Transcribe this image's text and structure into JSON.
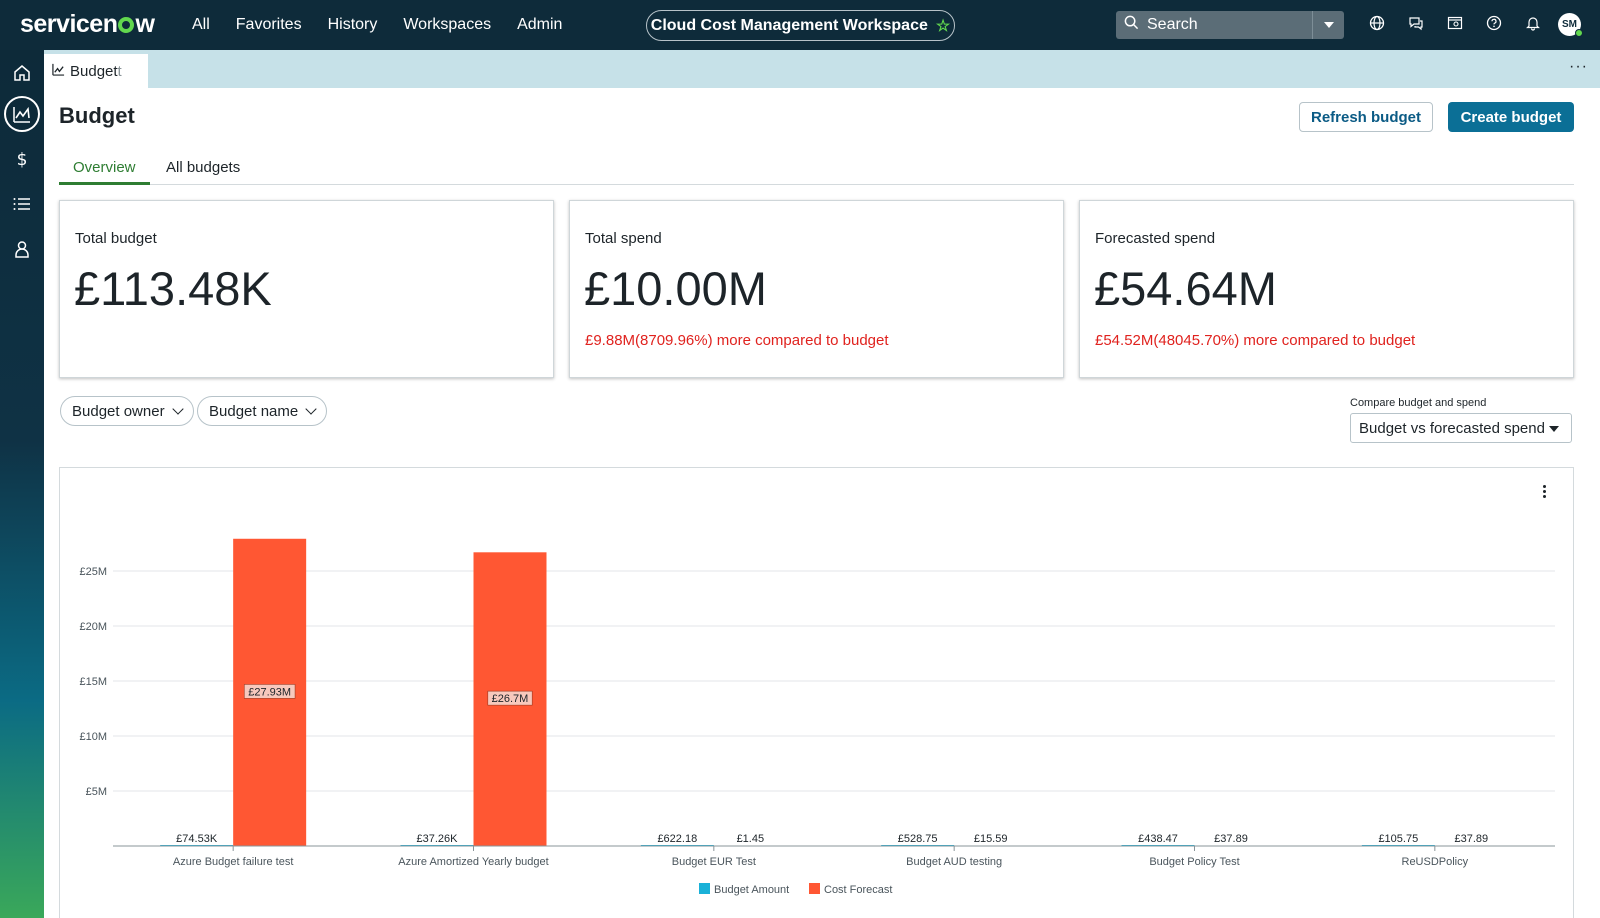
{
  "topnav": {
    "logo": "servicenow",
    "links": [
      "All",
      "Favorites",
      "History",
      "Workspaces",
      "Admin"
    ],
    "workspace": "Cloud Cost Management Workspace",
    "search_placeholder": "Search",
    "avatar_initials": "SM"
  },
  "tabstrip": {
    "tab_label": "Budget",
    "tab_label_fade": "t"
  },
  "page": {
    "title": "Budget",
    "refresh_label": "Refresh budget",
    "create_label": "Create budget",
    "tabs": [
      "Overview",
      "All budgets"
    ]
  },
  "cards": [
    {
      "label": "Total budget",
      "value": "£113.48K",
      "delta": ""
    },
    {
      "label": "Total spend",
      "value": "£10.00M",
      "delta": "£9.88M(8709.96%) more compared to budget"
    },
    {
      "label": "Forecasted spend",
      "value": "£54.64M",
      "delta": "£54.52M(48045.70%) more compared to budget"
    }
  ],
  "filters": {
    "budget_owner": "Budget owner",
    "budget_name": "Budget name",
    "compare_label": "Compare budget and spend",
    "compare_value": "Budget vs forecasted spend"
  },
  "colors": {
    "budget": "#1ab1d8",
    "forecast": "#ff5733",
    "accent": "#0b6f96",
    "alert": "#e0221e"
  },
  "chart_data": {
    "type": "bar",
    "categories": [
      "Azure Budget failure test",
      "Azure Amortized Yearly budget",
      "Budget EUR Test",
      "Budget AUD testing",
      "Budget Policy Test",
      "ReUSDPolicy"
    ],
    "series": [
      {
        "name": "Budget Amount",
        "values": [
          74530,
          37260,
          622.18,
          528.75,
          438.47,
          105.75
        ],
        "labels": [
          "£74.53K",
          "£37.26K",
          "£622.18",
          "£528.75",
          "£438.47",
          "£105.75"
        ]
      },
      {
        "name": "Cost Forecast",
        "values": [
          27930000,
          26700000,
          1.45,
          15.59,
          37.89,
          37.89
        ],
        "labels": [
          "£27.93M",
          "£26.7M",
          "£1.45",
          "£15.59",
          "£37.89",
          "£37.89"
        ]
      }
    ],
    "yticks": [
      "£5M",
      "£10M",
      "£15M",
      "£20M",
      "£25M"
    ],
    "ytick_values": [
      5000000,
      10000000,
      15000000,
      20000000,
      25000000
    ],
    "ylim": [
      0,
      28000000
    ],
    "grid": true,
    "legend": "bottom"
  }
}
